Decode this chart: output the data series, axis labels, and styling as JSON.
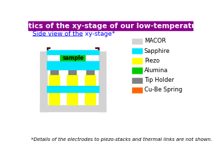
{
  "title": "Schematics of the xy-stage of our low-temperature STM",
  "title_bg": "#8B008B",
  "title_color": "white",
  "subtitle": "Side view of the xy-stage*",
  "footnote": "*Details of the electrodes to piezo-stacks and thermal links are not shown.",
  "colors": {
    "macor": "#D3D3D3",
    "sapphire": "#00E5FF",
    "piezo": "#FFFF00",
    "alumina": "#00CC00",
    "tip_holder": "#808080",
    "cu_be": "#FF6600",
    "dark_border": "#5A0000",
    "white": "#FFFFFF"
  },
  "legend": [
    {
      "label": "MACOR",
      "color": "#D3D3D3"
    },
    {
      "label": "Sapphire",
      "color": "#00E5FF"
    },
    {
      "label": "Piezo",
      "color": "#FFFF00"
    },
    {
      "label": "Alumina",
      "color": "#00CC00"
    },
    {
      "label": "Tip Holder",
      "color": "#808080"
    },
    {
      "label": "Cu-Be Spring",
      "color": "#FF6600"
    }
  ]
}
